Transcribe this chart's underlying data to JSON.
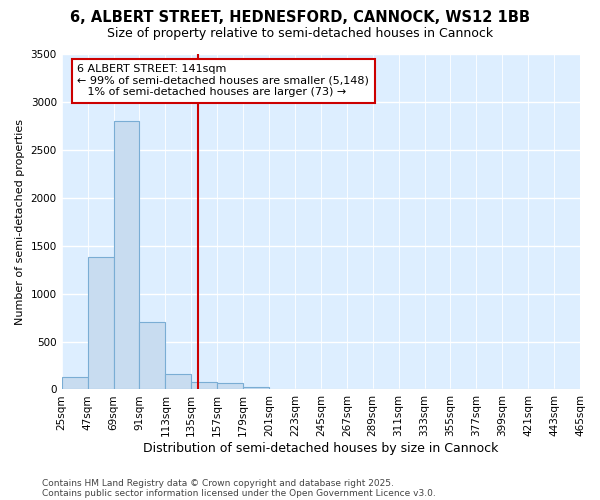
{
  "title": "6, ALBERT STREET, HEDNESFORD, CANNOCK, WS12 1BB",
  "subtitle": "Size of property relative to semi-detached houses in Cannock",
  "xlabel": "Distribution of semi-detached houses by size in Cannock",
  "ylabel": "Number of semi-detached properties",
  "bin_labels": [
    "25sqm",
    "47sqm",
    "69sqm",
    "91sqm",
    "113sqm",
    "135sqm",
    "157sqm",
    "179sqm",
    "201sqm",
    "223sqm",
    "245sqm",
    "267sqm",
    "289sqm",
    "311sqm",
    "333sqm",
    "355sqm",
    "377sqm",
    "399sqm",
    "421sqm",
    "443sqm",
    "465sqm"
  ],
  "bin_edges": [
    25,
    47,
    69,
    91,
    113,
    135,
    157,
    179,
    201,
    223,
    245,
    267,
    289,
    311,
    333,
    355,
    377,
    399,
    421,
    443,
    465
  ],
  "bar_values": [
    130,
    1380,
    2800,
    700,
    160,
    80,
    65,
    30,
    5,
    3,
    2,
    1,
    0,
    0,
    0,
    0,
    0,
    0,
    0,
    0
  ],
  "bar_color": "#c8dcf0",
  "bar_edge_color": "#7aadd4",
  "vline_x": 141,
  "vline_color": "#cc0000",
  "ylim": [
    0,
    3500
  ],
  "annotation_line1": "6 ALBERT STREET: 141sqm",
  "annotation_line2": "← 99% of semi-detached houses are smaller (5,148)",
  "annotation_line3": "   1% of semi-detached houses are larger (73) →",
  "annotation_border_color": "#cc0000",
  "footer_line1": "Contains HM Land Registry data © Crown copyright and database right 2025.",
  "footer_line2": "Contains public sector information licensed under the Open Government Licence v3.0.",
  "fig_bg_color": "#ffffff",
  "plot_bg_color": "#ddeeff",
  "title_fontsize": 10.5,
  "subtitle_fontsize": 9,
  "tick_fontsize": 7.5,
  "ylabel_fontsize": 8,
  "xlabel_fontsize": 9,
  "annotation_fontsize": 8,
  "footer_fontsize": 6.5
}
